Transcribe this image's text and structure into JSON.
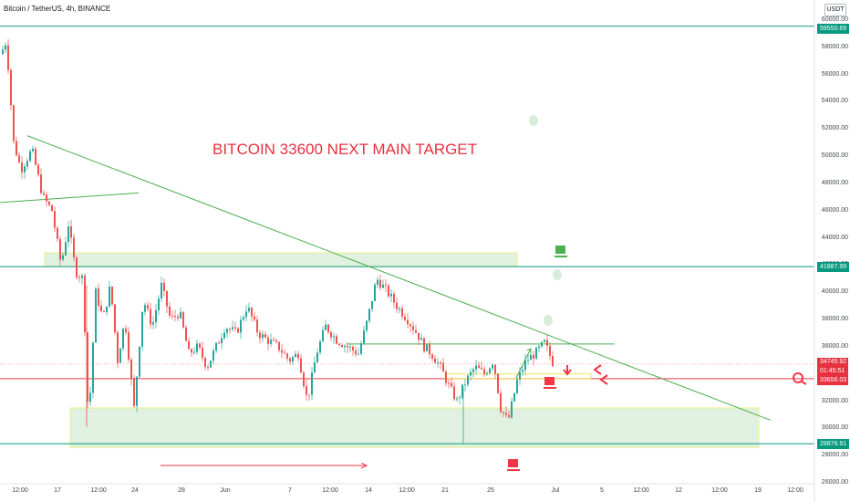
{
  "header": {
    "title": "Bitcoin / TetherUS, 4h, BINANCE",
    "currency": "USDT"
  },
  "annotation": {
    "headline": "BITCOIN 33600 NEXT MAIN TARGET"
  },
  "price_labels": {
    "resistance_top": "59550.69",
    "resistance_mid": "41887.99",
    "last_price": "34745.92",
    "countdown": "01:45:51",
    "target": "33656.03",
    "support": "28876.91"
  },
  "colors": {
    "up": "#26a69a",
    "down": "#ef5350",
    "level": "#089981",
    "target": "#f23645",
    "trend": "#4caf50",
    "zone": "#c8e6c9"
  },
  "icons": [
    "coffee-cup-icon",
    "arrow-down-icon",
    "arrow-left-icon",
    "magnifier-icon",
    "long-arrow-right-icon"
  ],
  "chart_data": {
    "type": "candlestick",
    "title": "Bitcoin / TetherUS, 4h, BINANCE",
    "y_ticks": [
      "60000.00",
      "58000.00",
      "56000.00",
      "54000.00",
      "52000.00",
      "50000.00",
      "48000.00",
      "46000.00",
      "44000.00",
      "42000.00",
      "40000.00",
      "38000.00",
      "36000.00",
      "32000.00",
      "30000.00",
      "28000.00",
      "26000.00"
    ],
    "x_ticks": [
      "12:00",
      "17",
      "12:00",
      "24",
      "28",
      "Jun",
      "7",
      "12:00",
      "14",
      "12:00",
      "21",
      "25",
      "Jul",
      "5",
      "12:00",
      "12",
      "12:00",
      "19",
      "12:00"
    ],
    "ylim": [
      26000,
      60000
    ],
    "price_path": [
      [
        0,
        57500
      ],
      [
        6,
        58500
      ],
      [
        14,
        51000
      ],
      [
        22,
        49000
      ],
      [
        34,
        50500
      ],
      [
        46,
        47000
      ],
      [
        56,
        46000
      ],
      [
        66,
        42000
      ],
      [
        74,
        45000
      ],
      [
        82,
        41500
      ],
      [
        90,
        41000
      ],
      [
        96,
        30200
      ],
      [
        104,
        40000
      ],
      [
        112,
        38000
      ],
      [
        120,
        40500
      ],
      [
        128,
        35000
      ],
      [
        136,
        38000
      ],
      [
        146,
        31500
      ],
      [
        156,
        39500
      ],
      [
        166,
        37500
      ],
      [
        176,
        40500
      ],
      [
        186,
        38000
      ],
      [
        196,
        38500
      ],
      [
        206,
        35500
      ],
      [
        216,
        36000
      ],
      [
        226,
        34500
      ],
      [
        236,
        36000
      ],
      [
        246,
        37500
      ],
      [
        258,
        37000
      ],
      [
        270,
        39000
      ],
      [
        282,
        37000
      ],
      [
        292,
        36500
      ],
      [
        304,
        36000
      ],
      [
        316,
        35000
      ],
      [
        326,
        35500
      ],
      [
        336,
        32000
      ],
      [
        346,
        35500
      ],
      [
        356,
        37500
      ],
      [
        368,
        36500
      ],
      [
        380,
        36000
      ],
      [
        392,
        35500
      ],
      [
        402,
        38000
      ],
      [
        412,
        41000
      ],
      [
        424,
        40000
      ],
      [
        434,
        39000
      ],
      [
        446,
        38000
      ],
      [
        456,
        37000
      ],
      [
        464,
        36000
      ],
      [
        472,
        35500
      ],
      [
        482,
        34500
      ],
      [
        492,
        33000
      ],
      [
        500,
        32000
      ],
      [
        510,
        33500
      ],
      [
        520,
        34500
      ],
      [
        530,
        34000
      ],
      [
        540,
        35000
      ],
      [
        548,
        31500
      ],
      [
        556,
        30500
      ],
      [
        566,
        33500
      ],
      [
        576,
        35000
      ],
      [
        586,
        35500
      ],
      [
        596,
        36300
      ],
      [
        606,
        34700
      ]
    ],
    "levels": [
      {
        "price": 59550.69,
        "label": "59550.69"
      },
      {
        "price": 41887.99,
        "label": "41887.99"
      },
      {
        "price": 33656.03,
        "label": "33656.03"
      },
      {
        "price": 28876.91,
        "label": "28876.91"
      }
    ],
    "zones": [
      [
        41900,
        42900
      ],
      [
        28600,
        31500
      ]
    ],
    "trendlines": [
      {
        "from": [
          30,
          51500
        ],
        "to": [
          845,
          30600
        ]
      },
      {
        "from": [
          0,
          46600
        ],
        "to": [
          152,
          47300
        ]
      }
    ],
    "annotations": [
      "BITCOIN 33600 NEXT MAIN TARGET"
    ]
  }
}
